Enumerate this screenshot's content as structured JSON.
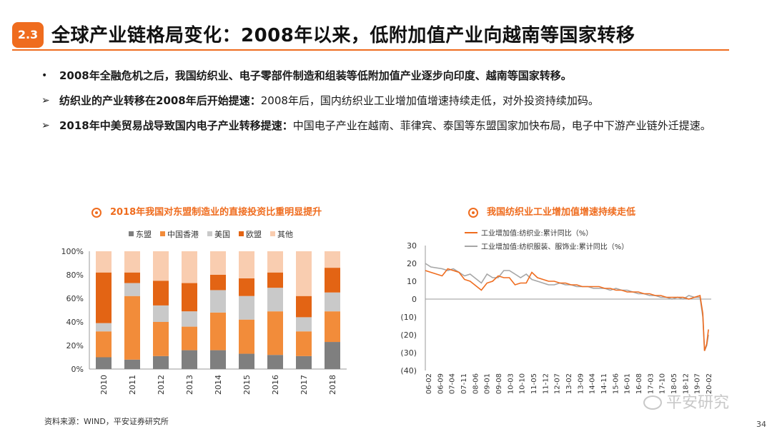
{
  "header": {
    "badge": "2.3",
    "title": "全球产业链格局变化：2008年以来，低附加值产业向越南等国家转移"
  },
  "bullets": [
    {
      "marker": "•",
      "bold": "2008年全融危机之后，我国纺织业、电子零部件制造和组装等低附加值产业逐步向印度、越南等国家转移。",
      "text": ""
    },
    {
      "marker": "➢",
      "bold": "纺织业的产业转移在2008年后开始提速：",
      "text": "2008年后，国内纺织业工业增加值增速持续走低，对外投资持续加码。"
    },
    {
      "marker": "➢",
      "bold": "2018年中美贸易战导致国内电子产业转移提速：",
      "text": "中国电子产业在越南、菲律宾、泰国等东盟国家加快布局，电子中下游产业链外迁提速。"
    }
  ],
  "chart1_title": "2018年我国对东盟制造业的直接投资比重明显提升",
  "chart2_title": "我国纺织业工业增加值增速持续走低",
  "source": "资料来源：WIND，平安证券研究所",
  "page_number": "34",
  "watermark": "平安研究",
  "colors": {
    "accent": "#ef6c1e",
    "asean": "#7f7f7f",
    "hk": "#f28c3a",
    "us": "#c9c9c9",
    "eu": "#e36414",
    "other": "#f9cdb0",
    "line1": "#ef6c1e",
    "line2": "#a6a6a6"
  },
  "chart_data": [
    {
      "type": "bar",
      "stacked": true,
      "title": "2018年我国对东盟制造业的直接投资比重明显提升",
      "categories": [
        "2010",
        "2011",
        "2012",
        "2013",
        "2014",
        "2015",
        "2016",
        "2017",
        "2018"
      ],
      "series": [
        {
          "name": "东盟",
          "values": [
            10,
            8,
            11,
            16,
            16,
            13,
            12,
            11,
            23
          ]
        },
        {
          "name": "中国香港",
          "values": [
            22,
            54,
            29,
            20,
            32,
            29,
            37,
            21,
            26
          ]
        },
        {
          "name": "美国",
          "values": [
            7,
            11,
            14,
            13,
            19,
            20,
            20,
            12,
            16
          ]
        },
        {
          "name": "欧盟",
          "values": [
            43,
            9,
            21,
            24,
            13,
            15,
            13,
            18,
            21
          ]
        },
        {
          "name": "其他",
          "values": [
            18,
            18,
            25,
            27,
            20,
            23,
            18,
            38,
            14
          ]
        }
      ],
      "ylim": [
        0,
        100
      ],
      "yticks": [
        "0%",
        "20%",
        "40%",
        "60%",
        "80%",
        "100%"
      ],
      "legend_position": "top"
    },
    {
      "type": "line",
      "title": "我国纺织业工业增加值增速持续走低",
      "legend": [
        "工业增加值:纺织业:累计同比（%）",
        "工业增加值:纺织服装、服饰业:累计同比（%）"
      ],
      "ylim": [
        -40,
        30
      ],
      "yticks": [
        "30",
        "20",
        "10",
        "0",
        "(10)",
        "(20)",
        "(30)",
        "(40)"
      ],
      "xticks": [
        "06-02",
        "06-09",
        "07-04",
        "07-11",
        "08-06",
        "09-01",
        "09-08",
        "10-03",
        "10-10",
        "11-05",
        "11-12",
        "12-07",
        "13-02",
        "13-09",
        "14-04",
        "14-11",
        "15-06",
        "16-01",
        "16-08",
        "17-03",
        "17-10",
        "18-05",
        "18-12",
        "19-07",
        "20-02"
      ],
      "series": [
        {
          "name": "工业增加值:纺织业:累计同比（%）",
          "x": [
            0,
            1,
            3,
            4,
            5,
            6,
            7,
            8,
            10,
            11,
            12,
            13,
            14,
            15,
            16,
            17,
            18,
            19,
            20,
            21,
            22,
            23,
            24,
            25,
            26,
            27,
            28,
            29,
            30,
            31,
            32,
            33,
            34,
            35,
            36,
            37,
            38,
            39,
            40,
            41,
            42,
            43,
            44,
            45,
            46,
            47,
            48,
            49,
            49.5,
            49.8,
            50.2,
            50.5
          ],
          "y": [
            16,
            15,
            13,
            17,
            16,
            15,
            11,
            10,
            5,
            9,
            10,
            13,
            12,
            12,
            8,
            9,
            9,
            15,
            12,
            11,
            10,
            10,
            9,
            9,
            8,
            8,
            7,
            7,
            7,
            7,
            6,
            6,
            5,
            5,
            4,
            4,
            4,
            3,
            3,
            2,
            2,
            1,
            1,
            1,
            1,
            0,
            1,
            2,
            -8,
            -29,
            -25,
            -17
          ]
        },
        {
          "name": "工业增加值:纺织服装、服饰业:累计同比（%）",
          "x": [
            0,
            1,
            3,
            4,
            5,
            6,
            7,
            8,
            10,
            11,
            12,
            13,
            14,
            15,
            16,
            17,
            18,
            19,
            20,
            21,
            22,
            23,
            24,
            25,
            26,
            27,
            28,
            29,
            30,
            31,
            32,
            33,
            34,
            35,
            36,
            37,
            38,
            39,
            40,
            41,
            42,
            43,
            44,
            45,
            46,
            47,
            48,
            49,
            49.5,
            49.8,
            50.2,
            50.5
          ],
          "y": [
            20,
            18,
            17,
            16,
            17,
            15,
            13,
            14,
            9,
            14,
            12,
            12,
            16,
            16,
            14,
            12,
            14,
            11,
            10,
            9,
            8,
            8,
            9,
            8,
            8,
            7,
            7,
            7,
            6,
            6,
            6,
            5,
            6,
            5,
            5,
            4,
            3,
            3,
            2,
            2,
            1,
            1,
            0,
            1,
            0,
            2,
            1,
            1,
            -10,
            -29,
            -26,
            -20
          ]
        }
      ]
    }
  ]
}
